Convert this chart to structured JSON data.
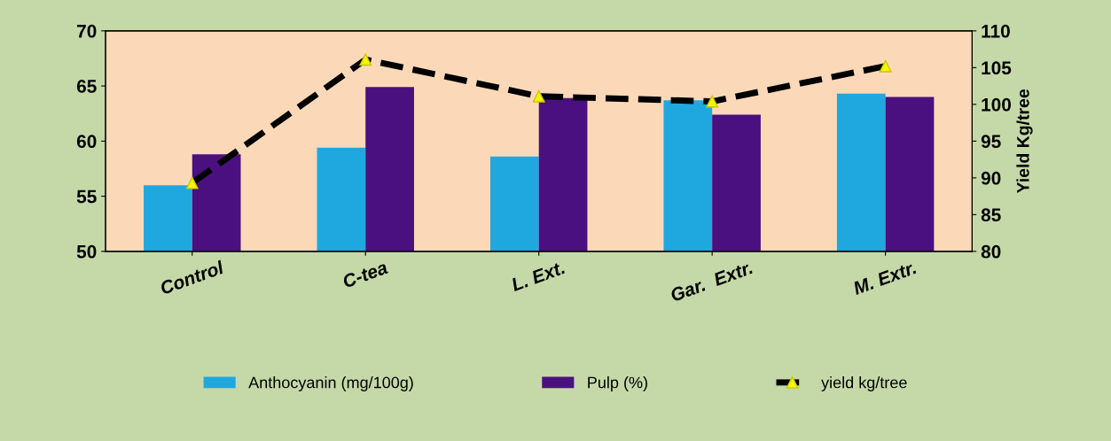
{
  "chart_data": {
    "type": "bar",
    "categories": [
      "Control",
      "C-tea",
      "L. Ext.",
      "Gar.  Extr.",
      "M. Extr."
    ],
    "series": [
      {
        "name": "Anthocyanin (mg/100g)",
        "color": "#1fa8e0",
        "values": [
          56.0,
          59.4,
          58.6,
          63.7,
          64.3
        ]
      },
      {
        "name": "Pulp (%)",
        "color": "#4a1080",
        "values": [
          58.8,
          64.9,
          63.9,
          62.4,
          64.0
        ]
      },
      {
        "name": "yield kg/tree",
        "type": "line",
        "axis": "y2",
        "color": "#000000",
        "line_style": "dashed",
        "marker": "triangle",
        "values": [
          89.3,
          106.1,
          101.1,
          100.4,
          105.2
        ]
      }
    ],
    "ylim": [
      50,
      70
    ],
    "yticks": [
      50,
      55,
      60,
      65,
      70
    ],
    "y2lim": [
      80,
      110
    ],
    "y2ticks": [
      80,
      85,
      90,
      95,
      100,
      105,
      110
    ],
    "y2label": "Yield Kg/tree",
    "legend": "bottom",
    "grid": false
  }
}
